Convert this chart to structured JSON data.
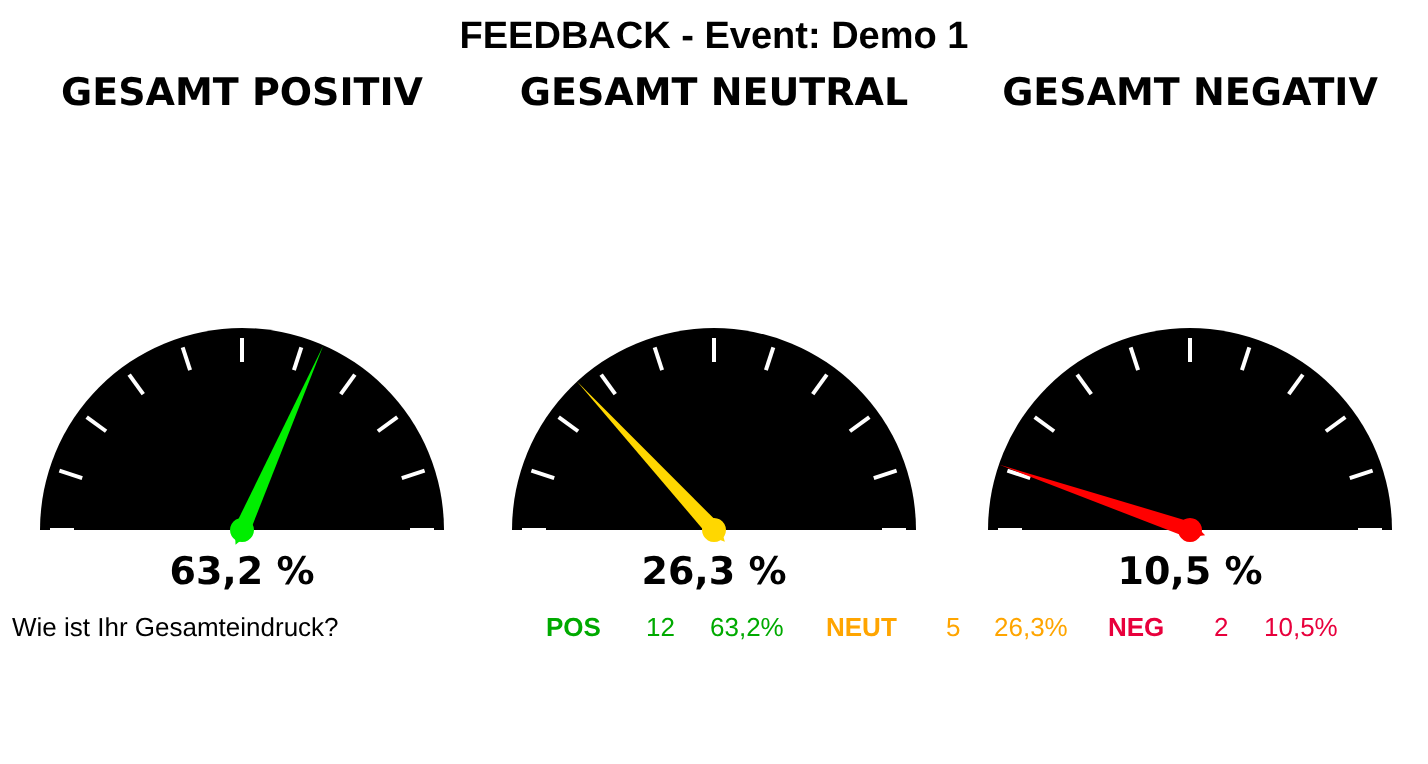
{
  "chart_data": [
    {
      "type": "other",
      "title": "GESAMT POSITIV",
      "annotations": [
        "FEEDBACK - Event: Demo 1"
      ],
      "values": [
        63.2
      ],
      "value_labels": [
        "63,2 %"
      ],
      "color": "#00ee00"
    },
    {
      "type": "other",
      "title": "GESAMT NEUTRAL",
      "values": [
        26.3
      ],
      "value_labels": [
        "26,3 %"
      ],
      "color": "#ffd700"
    },
    {
      "type": "other",
      "title": "GESAMT NEGATIV",
      "values": [
        10.5
      ],
      "value_labels": [
        "10,5 %"
      ],
      "color": "#ff0000"
    },
    {
      "type": "other",
      "title": "Wie ist Ihr Gesamteindruck?",
      "categories": [
        "POS",
        "NEUT",
        "NEG"
      ],
      "colors": [
        "#00aa00",
        "#ffa500",
        "#e8003c"
      ],
      "annotations": [
        "12",
        "63,2%",
        "5",
        "26,3%",
        "2",
        "10,5%"
      ]
    }
  ]
}
